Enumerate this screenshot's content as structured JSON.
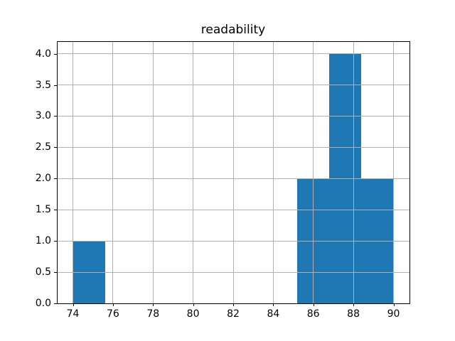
{
  "chart_data": {
    "type": "bar",
    "subtype": "histogram",
    "title": "readability",
    "xlabel": "",
    "ylabel": "",
    "bin_edges": [
      74.0,
      75.6,
      77.2,
      78.8,
      80.4,
      82.0,
      83.6,
      85.2,
      86.8,
      88.4,
      90.0
    ],
    "counts": [
      1,
      0,
      0,
      0,
      0,
      0,
      0,
      2,
      4,
      2
    ],
    "xlim": [
      73.2,
      90.8
    ],
    "ylim": [
      0,
      4.2
    ],
    "x_ticks": [
      74,
      76,
      78,
      80,
      82,
      84,
      86,
      88,
      90
    ],
    "y_ticks": [
      0.0,
      0.5,
      1.0,
      1.5,
      2.0,
      2.5,
      3.0,
      3.5,
      4.0
    ],
    "y_tick_labels": [
      "0.0",
      "0.5",
      "1.0",
      "1.5",
      "2.0",
      "2.5",
      "3.0",
      "3.5",
      "4.0"
    ],
    "grid": true,
    "legend_position": "none",
    "colors": {
      "bar": "#1f77b4",
      "grid": "#b0b0b0",
      "frame": "#000000",
      "background": "#ffffff",
      "text": "#000000"
    }
  }
}
